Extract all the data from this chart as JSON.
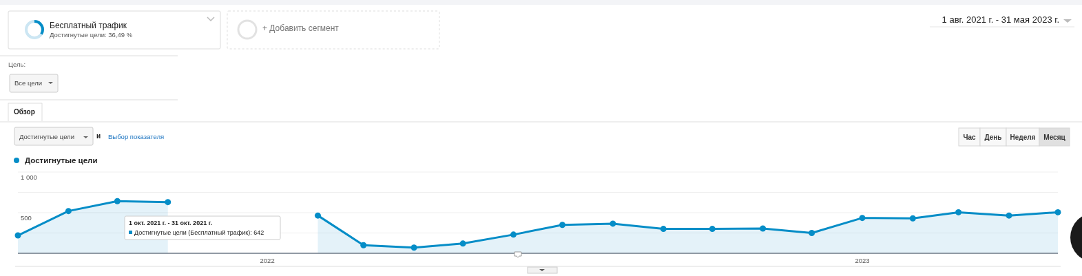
{
  "chart_data": {
    "type": "area",
    "x": [
      "2021-08",
      "2021-09",
      "2021-10",
      "2021-11",
      "2021-12",
      "2022-01",
      "2022-02",
      "2022-03",
      "2022-04",
      "2022-05",
      "2022-06",
      "2022-07",
      "2022-08",
      "2022-09",
      "2022-10",
      "2022-11",
      "2022-12",
      "2023-01",
      "2023-02",
      "2023-03",
      "2023-04",
      "2023-05"
    ],
    "series": [
      {
        "name": "Достигнутые цели",
        "color": "#058dc7",
        "values": [
          220,
          520,
          642,
          630,
          null,
          null,
          465,
          100,
          70,
          120,
          230,
          350,
          365,
          300,
          300,
          305,
          250,
          435,
          430,
          505,
          465,
          505
        ]
      }
    ],
    "xlim": [
      "2021-08",
      "2023-05"
    ],
    "xticks": [
      "2022",
      "2023"
    ],
    "ylim": [
      0,
      1000
    ],
    "yticks": [
      {
        "value": 250,
        "label": null
      },
      {
        "value": 500,
        "label": "500"
      },
      {
        "value": 750,
        "label": null
      },
      {
        "value": 1000,
        "label": "1 000"
      }
    ],
    "grid": "y",
    "legend": "top left",
    "marker": "circle",
    "annotations": [
      "Бесплатный трафик",
      "Достигнутые цели: 36,49 %",
      "+ Добавить сегмент",
      "1 авг. 2021 г. - 31 мая 2023 г.",
      "Цель:",
      "Все цели",
      "Обзор",
      "Достигнутые цели",
      "и",
      "Выбор показателя",
      "Час",
      "День",
      "Неделя",
      "Месяц",
      "1 окт. 2021 г. - 31 окт. 2021 г.",
      "Достигнутые цели (Бесплатный трафик): 642"
    ]
  }
}
